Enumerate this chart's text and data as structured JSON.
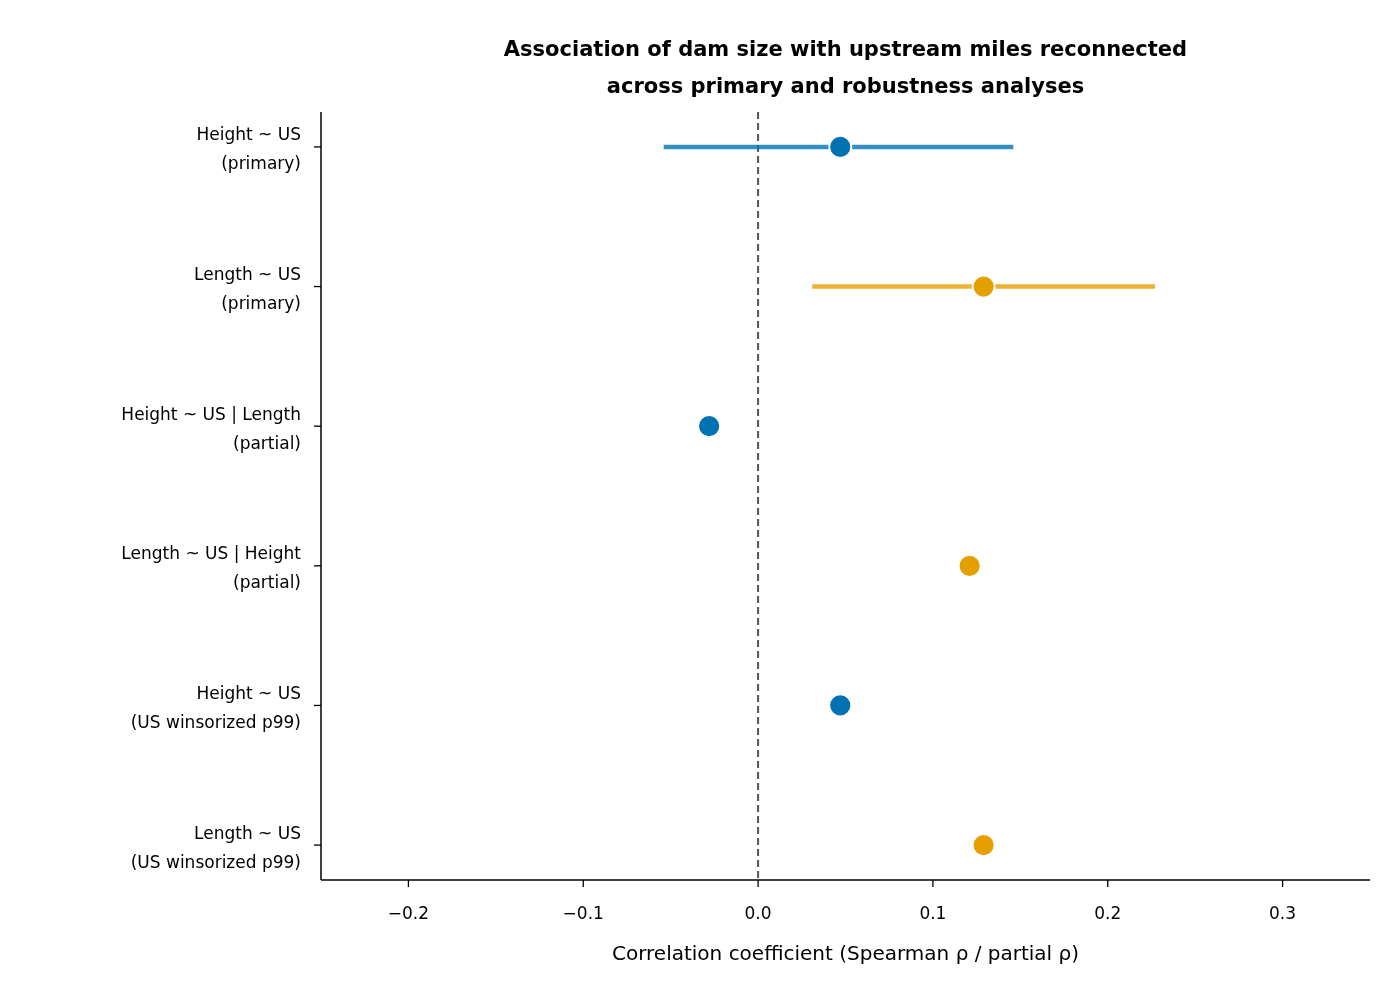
{
  "chart_data": {
    "type": "scatter",
    "orientation": "horizontal",
    "title": "Association of dam size with upstream miles reconnected\nacross primary and robustness analyses",
    "xlabel": "Correlation coefficient (Spearman ρ / partial ρ)",
    "categories": [
      "Height ~ US\n(primary)",
      "Length ~ US\n(primary)",
      "Height ~ US | Length\n(partial)",
      "Length ~ US | Height\n(partial)",
      "Height ~ US\n(US winsorized p99)",
      "Length ~ US\n(US winsorized p99)"
    ],
    "values": [
      0.047,
      0.129,
      -0.028,
      0.121,
      0.047,
      0.129
    ],
    "colors": [
      "#0072b2",
      "#e69f00",
      "#0072b2",
      "#e69f00",
      "#0072b2",
      "#e69f00"
    ],
    "errors": [
      [
        -0.054,
        0.146
      ],
      [
        0.031,
        0.227
      ],
      null,
      null,
      null,
      null
    ],
    "xlim": [
      -0.25,
      0.35
    ],
    "xticks": [
      {
        "value": -0.2,
        "label": "−0.2"
      },
      {
        "value": -0.1,
        "label": "−0.1"
      },
      {
        "value": 0,
        "label": "0.0"
      },
      0.1,
      0.2,
      0.3
    ],
    "ref_lines": [
      {
        "axis": "x",
        "value": 0,
        "color": "#555555",
        "line_style": "dashed"
      }
    ],
    "marker": "circle"
  }
}
